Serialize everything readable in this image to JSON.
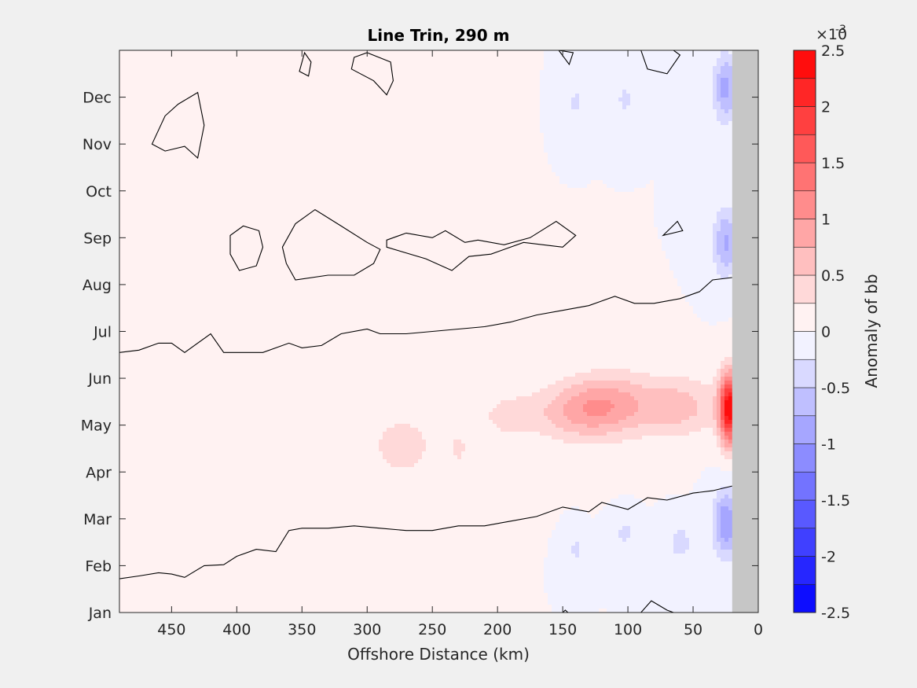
{
  "chart_data": {
    "type": "heatmap",
    "title": "Line Trin, 290 m",
    "xlabel": "Offshore Distance (km)",
    "ylabel": "",
    "x_reversed": true,
    "xlim": [
      0,
      490
    ],
    "ylim": [
      "Jan",
      "Jan+12mo"
    ],
    "x_ticks": [
      450,
      400,
      350,
      300,
      250,
      200,
      150,
      100,
      50,
      0
    ],
    "y_ticks": [
      "Jan",
      "Feb",
      "Mar",
      "Apr",
      "May",
      "Jun",
      "Jul",
      "Aug",
      "Sep",
      "Oct",
      "Nov",
      "Dec"
    ],
    "land_mask": {
      "from_km": 0,
      "to_km": 20,
      "color": "#c6c6c6"
    },
    "colorbar": {
      "label": "Anomaly of bb",
      "multiplier": "×10",
      "exponent": "-3",
      "range": [
        -2.5,
        2.5
      ],
      "step": 0.25,
      "tick_values": [
        2.5,
        2,
        1.5,
        1,
        0.5,
        0,
        -0.5,
        -1,
        -1.5,
        -2,
        -2.5
      ],
      "tick_labels": [
        "2.5",
        "2",
        "1.5",
        "1",
        "0.5",
        "0",
        "-0.5",
        "-1",
        "-1.5",
        "-2",
        "-2.5"
      ],
      "colors": {
        "max": "#ff0000",
        "zero": "#ffffff",
        "min": "#0000ff"
      }
    },
    "anomaly_features": [
      {
        "sign": "positive",
        "x_center_km": 22,
        "month": 4.35,
        "x_halfwidth_km": 10,
        "month_halfwidth": 0.95,
        "peak": 2.4
      },
      {
        "sign": "positive",
        "x_center_km": 60,
        "month": 4.4,
        "x_halfwidth_km": 38,
        "month_halfwidth": 0.8,
        "peak": 0.6
      },
      {
        "sign": "positive",
        "x_center_km": 110,
        "month": 4.45,
        "x_halfwidth_km": 40,
        "month_halfwidth": 0.85,
        "peak": 0.7
      },
      {
        "sign": "positive",
        "x_center_km": 140,
        "month": 4.3,
        "x_halfwidth_km": 40,
        "month_halfwidth": 0.8,
        "peak": 0.65
      },
      {
        "sign": "positive",
        "x_center_km": 190,
        "month": 4.2,
        "x_halfwidth_km": 28,
        "month_halfwidth": 0.55,
        "peak": 0.4
      },
      {
        "sign": "positive",
        "x_center_km": 230,
        "month": 3.5,
        "x_halfwidth_km": 10,
        "month_halfwidth": 0.45,
        "peak": 0.32
      },
      {
        "sign": "positive",
        "x_center_km": 273,
        "month": 3.55,
        "x_halfwidth_km": 28,
        "month_halfwidth": 0.8,
        "peak": 0.45
      },
      {
        "sign": "negative",
        "x_center_km": 25,
        "month": 11.2,
        "x_halfwidth_km": 12,
        "month_halfwidth": 0.9,
        "peak": -0.85
      },
      {
        "sign": "negative",
        "x_center_km": 25,
        "month": 7.9,
        "x_halfwidth_km": 12,
        "month_halfwidth": 0.9,
        "peak": -0.8
      },
      {
        "sign": "negative",
        "x_center_km": 25,
        "month": 1.9,
        "x_halfwidth_km": 12,
        "month_halfwidth": 0.9,
        "peak": -1.0
      },
      {
        "sign": "negative",
        "x_center_km": 140,
        "month": 10.9,
        "x_halfwidth_km": 6,
        "month_halfwidth": 0.4,
        "peak": -0.35
      },
      {
        "sign": "negative",
        "x_center_km": 102,
        "month": 10.95,
        "x_halfwidth_km": 9,
        "month_halfwidth": 0.42,
        "peak": -0.35
      },
      {
        "sign": "negative",
        "x_center_km": 140,
        "month": 1.35,
        "x_halfwidth_km": 6,
        "month_halfwidth": 0.36,
        "peak": -0.35
      },
      {
        "sign": "negative",
        "x_center_km": 102,
        "month": 1.7,
        "x_halfwidth_km": 9,
        "month_halfwidth": 0.38,
        "peak": -0.35
      },
      {
        "sign": "negative",
        "x_center_km": 60,
        "month": 1.5,
        "x_halfwidth_km": 12,
        "month_halfwidth": 0.45,
        "peak": -0.4
      }
    ],
    "zero_contours": [
      {
        "name": "upper-band-edge",
        "closed": false,
        "points": [
          [
            490,
            5.55
          ],
          [
            475,
            5.6
          ],
          [
            460,
            5.75
          ],
          [
            450,
            5.75
          ],
          [
            440,
            5.55
          ],
          [
            420,
            5.95
          ],
          [
            410,
            5.55
          ],
          [
            400,
            5.55
          ],
          [
            380,
            5.55
          ],
          [
            360,
            5.75
          ],
          [
            350,
            5.65
          ],
          [
            335,
            5.7
          ],
          [
            320,
            5.95
          ],
          [
            300,
            6.05
          ],
          [
            290,
            5.95
          ],
          [
            270,
            5.95
          ],
          [
            250,
            6.0
          ],
          [
            230,
            6.05
          ],
          [
            210,
            6.1
          ],
          [
            190,
            6.2
          ],
          [
            170,
            6.35
          ],
          [
            150,
            6.45
          ],
          [
            130,
            6.55
          ],
          [
            110,
            6.75
          ],
          [
            95,
            6.6
          ],
          [
            80,
            6.6
          ],
          [
            60,
            6.7
          ],
          [
            45,
            6.85
          ],
          [
            35,
            7.1
          ],
          [
            20,
            7.15
          ]
        ]
      },
      {
        "name": "lower-band-edge",
        "closed": false,
        "points": [
          [
            490,
            0.72
          ],
          [
            475,
            0.78
          ],
          [
            460,
            0.85
          ],
          [
            450,
            0.82
          ],
          [
            440,
            0.75
          ],
          [
            425,
            1.0
          ],
          [
            410,
            1.02
          ],
          [
            400,
            1.2
          ],
          [
            385,
            1.35
          ],
          [
            370,
            1.3
          ],
          [
            360,
            1.75
          ],
          [
            350,
            1.8
          ],
          [
            330,
            1.8
          ],
          [
            310,
            1.85
          ],
          [
            290,
            1.8
          ],
          [
            270,
            1.75
          ],
          [
            250,
            1.75
          ],
          [
            230,
            1.85
          ],
          [
            210,
            1.85
          ],
          [
            190,
            1.95
          ],
          [
            170,
            2.05
          ],
          [
            150,
            2.25
          ],
          [
            130,
            2.15
          ],
          [
            120,
            2.35
          ],
          [
            100,
            2.2
          ],
          [
            85,
            2.45
          ],
          [
            70,
            2.4
          ],
          [
            50,
            2.55
          ],
          [
            35,
            2.6
          ],
          [
            20,
            2.7
          ]
        ]
      },
      {
        "name": "dec-nov-blob",
        "closed": true,
        "points": [
          [
            465,
            10.0
          ],
          [
            455,
            10.6
          ],
          [
            445,
            10.85
          ],
          [
            430,
            11.1
          ],
          [
            425,
            10.4
          ],
          [
            430,
            9.7
          ],
          [
            440,
            9.95
          ],
          [
            455,
            9.85
          ]
        ]
      },
      {
        "name": "dec-small-350",
        "closed": true,
        "points": [
          [
            352,
            11.55
          ],
          [
            345,
            11.45
          ],
          [
            343,
            11.75
          ],
          [
            348,
            11.95
          ]
        ]
      },
      {
        "name": "dec-small-300",
        "closed": true,
        "points": [
          [
            312,
            11.6
          ],
          [
            295,
            11.35
          ],
          [
            285,
            11.05
          ],
          [
            280,
            11.35
          ],
          [
            282,
            11.75
          ],
          [
            300,
            11.95
          ],
          [
            310,
            11.85
          ]
        ]
      },
      {
        "name": "dec-small-150",
        "closed": true,
        "points": [
          [
            153,
            12.0
          ],
          [
            145,
            11.7
          ],
          [
            142,
            11.95
          ]
        ]
      },
      {
        "name": "dec-small-80",
        "closed": true,
        "points": [
          [
            90,
            12.0
          ],
          [
            85,
            11.6
          ],
          [
            70,
            11.5
          ],
          [
            60,
            11.9
          ],
          [
            65,
            12.0
          ]
        ]
      },
      {
        "name": "aug-blob-400",
        "closed": true,
        "points": [
          [
            405,
            7.65
          ],
          [
            398,
            7.3
          ],
          [
            385,
            7.4
          ],
          [
            380,
            7.8
          ],
          [
            383,
            8.15
          ],
          [
            395,
            8.25
          ],
          [
            405,
            8.05
          ]
        ]
      },
      {
        "name": "aug-sep-blob-350",
        "closed": true,
        "points": [
          [
            365,
            7.8
          ],
          [
            355,
            8.3
          ],
          [
            340,
            8.6
          ],
          [
            320,
            8.25
          ],
          [
            300,
            7.9
          ],
          [
            290,
            7.75
          ],
          [
            295,
            7.45
          ],
          [
            310,
            7.2
          ],
          [
            330,
            7.2
          ],
          [
            355,
            7.1
          ],
          [
            362,
            7.45
          ]
        ]
      },
      {
        "name": "aug-sep-blob-250",
        "closed": true,
        "points": [
          [
            285,
            7.95
          ],
          [
            270,
            8.1
          ],
          [
            250,
            8.0
          ],
          [
            240,
            8.15
          ],
          [
            225,
            7.9
          ],
          [
            215,
            7.95
          ],
          [
            195,
            7.85
          ],
          [
            175,
            8.0
          ],
          [
            155,
            8.35
          ],
          [
            140,
            8.05
          ],
          [
            150,
            7.8
          ],
          [
            180,
            7.9
          ],
          [
            205,
            7.65
          ],
          [
            222,
            7.6
          ],
          [
            235,
            7.3
          ],
          [
            255,
            7.55
          ],
          [
            285,
            7.8
          ]
        ]
      },
      {
        "name": "sep-small-60",
        "closed": true,
        "points": [
          [
            73,
            8.05
          ],
          [
            62,
            8.35
          ],
          [
            58,
            8.15
          ]
        ]
      },
      {
        "name": "jan-small-145",
        "closed": true,
        "points": [
          [
            150,
            0.0
          ],
          [
            148,
            0.05
          ],
          [
            146,
            0.0
          ]
        ]
      },
      {
        "name": "jan-small-80",
        "closed": true,
        "points": [
          [
            90,
            0.0
          ],
          [
            82,
            0.25
          ],
          [
            70,
            0.05
          ],
          [
            65,
            0.0
          ]
        ]
      }
    ]
  }
}
